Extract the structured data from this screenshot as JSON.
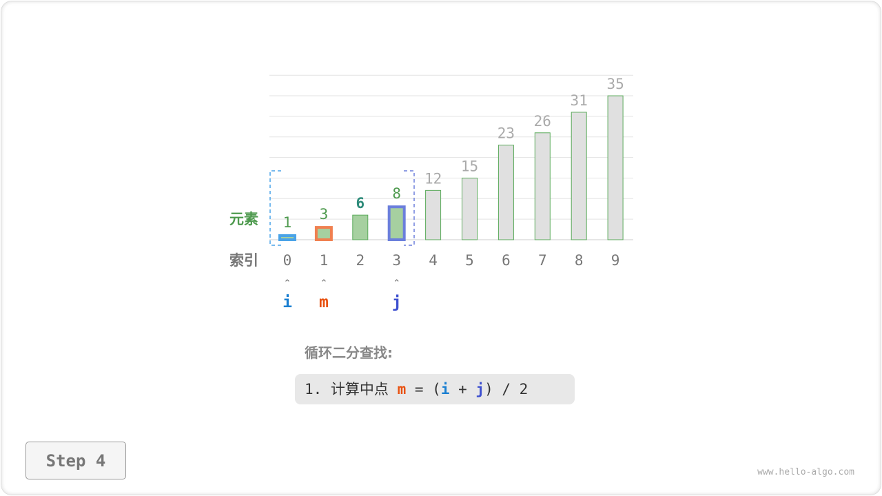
{
  "chart_data": {
    "type": "bar",
    "categories": [
      "0",
      "1",
      "2",
      "3",
      "4",
      "5",
      "6",
      "7",
      "8",
      "9"
    ],
    "values": [
      1,
      3,
      6,
      8,
      12,
      15,
      23,
      26,
      31,
      35
    ],
    "row_labels": {
      "elements": "元素",
      "index": "索引"
    },
    "ylim": [
      0,
      40
    ],
    "grid": true,
    "pointers": [
      {
        "name": "i",
        "index": 0,
        "color": "#1a7fd1"
      },
      {
        "name": "m",
        "index": 1,
        "color": "#e8500e"
      },
      {
        "name": "j",
        "index": 3,
        "color": "#3d4fcf"
      }
    ],
    "search_range": [
      0,
      3
    ]
  },
  "colors": {
    "bar_active": "#a6d0a0",
    "bar_inactive": "#e0e0e0",
    "bar_stroke": "#5aaa5a",
    "i": "#1a7fd1",
    "m": "#e8500e",
    "j": "#3d4fcf",
    "highlight_value": "#2e8b7a"
  },
  "caption": {
    "title": "循环二分查找:",
    "step_prefix": "1. 计算中点 ",
    "m": "m",
    "eq": " = (",
    "i": "i",
    "plus": " + ",
    "j": "j",
    "tail": ") / 2"
  },
  "step_label": "Step 4",
  "watermark": "www.hello-algo.com"
}
